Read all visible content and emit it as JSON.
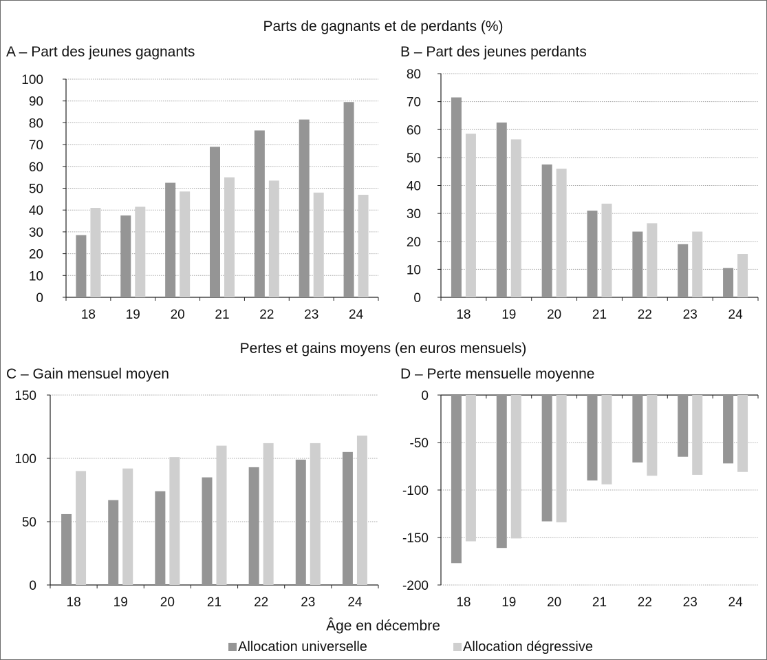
{
  "section_titles": {
    "top": "Parts de gagnants et de perdants (%)",
    "bottom": "Pertes et gains moyens (en euros mensuels)"
  },
  "xlabel": "Âge en décembre",
  "legend": [
    {
      "name": "Allocation universelle",
      "color": "#959595"
    },
    {
      "name": "Allocation dégressive",
      "color": "#cfcfcf"
    }
  ],
  "chart_data": [
    {
      "id": "A",
      "type": "bar",
      "title": "A – Part des jeunes gagnants",
      "categories": [
        "18",
        "19",
        "20",
        "21",
        "22",
        "23",
        "24"
      ],
      "ylim": [
        0,
        100
      ],
      "yticks": [
        0,
        10,
        20,
        30,
        40,
        50,
        60,
        70,
        80,
        90,
        100
      ],
      "grid": true,
      "series": [
        {
          "name": "Allocation universelle",
          "values": [
            28.5,
            37.5,
            52.5,
            69,
            76.5,
            81.5,
            89.5
          ]
        },
        {
          "name": "Allocation dégressive",
          "values": [
            41,
            41.5,
            48.5,
            55,
            53.5,
            48,
            47
          ]
        }
      ]
    },
    {
      "id": "B",
      "type": "bar",
      "title": "B – Part des jeunes perdants",
      "categories": [
        "18",
        "19",
        "20",
        "21",
        "22",
        "23",
        "24"
      ],
      "ylim": [
        0,
        80
      ],
      "yticks": [
        0,
        10,
        20,
        30,
        40,
        50,
        60,
        70,
        80
      ],
      "grid": true,
      "series": [
        {
          "name": "Allocation universelle",
          "values": [
            71.5,
            62.5,
            47.5,
            31,
            23.5,
            19,
            10.5
          ]
        },
        {
          "name": "Allocation dégressive",
          "values": [
            58.5,
            56.5,
            46,
            33.5,
            26.5,
            23.5,
            15.5
          ]
        }
      ]
    },
    {
      "id": "C",
      "type": "bar",
      "title": "C – Gain mensuel moyen",
      "categories": [
        "18",
        "19",
        "20",
        "21",
        "22",
        "23",
        "24"
      ],
      "ylim": [
        0,
        150
      ],
      "yticks": [
        0,
        50,
        100,
        150
      ],
      "grid": true,
      "series": [
        {
          "name": "Allocation universelle",
          "values": [
            56,
            67,
            74,
            85,
            93,
            99,
            105
          ]
        },
        {
          "name": "Allocation dégressive",
          "values": [
            90,
            92,
            101,
            110,
            112,
            112,
            118
          ]
        }
      ]
    },
    {
      "id": "D",
      "type": "bar",
      "title": "D – Perte mensuelle moyenne",
      "categories": [
        "18",
        "19",
        "20",
        "21",
        "22",
        "23",
        "24"
      ],
      "ylim": [
        -200,
        0
      ],
      "yticks": [
        0,
        -50,
        -100,
        -150,
        -200
      ],
      "grid": true,
      "series": [
        {
          "name": "Allocation universelle",
          "values": [
            -177,
            -161,
            -133,
            -90,
            -71,
            -65,
            -72
          ]
        },
        {
          "name": "Allocation dégressive",
          "values": [
            -154,
            -151,
            -134,
            -94,
            -85,
            -84,
            -81
          ]
        }
      ]
    }
  ]
}
